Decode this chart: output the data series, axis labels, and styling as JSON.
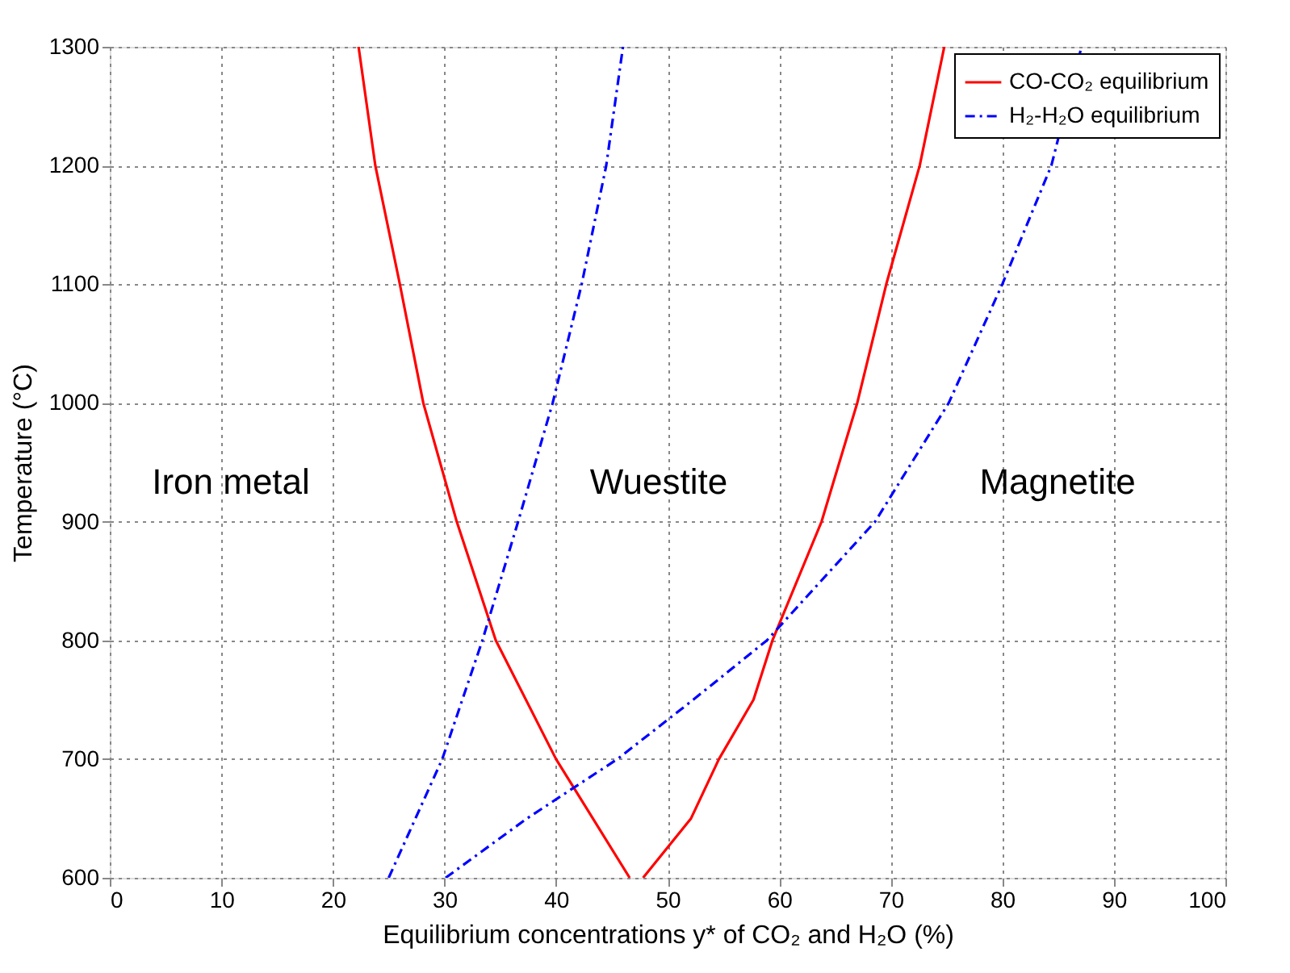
{
  "chart_data": {
    "type": "line",
    "xlabel": "Equilibrium concentrations y* of CO₂ and H₂O (%)",
    "ylabel": "Temperature (°C)",
    "xlim": [
      0,
      100
    ],
    "xticks": [
      0,
      10,
      20,
      30,
      40,
      50,
      60,
      70,
      80,
      90,
      100
    ],
    "ylim": [
      600,
      1300
    ],
    "yticks": [
      600,
      700,
      800,
      900,
      1000,
      1100,
      1200,
      1300
    ],
    "grid": true,
    "legend": "top right",
    "marker": "none",
    "series": [
      {
        "name": "CO-CO₂ equilibrium",
        "color": "#ff0000",
        "line_style": "solid",
        "x": [
          46.6,
          40,
          34.6,
          31.1,
          28.1,
          26.0,
          23.8,
          22.3
        ],
        "values": [
          600,
          700,
          800,
          900,
          1000,
          1100,
          1200,
          1300
        ]
      },
      {
        "color": "#ff0000",
        "line_style": "solid",
        "x": [
          47.8,
          52.1,
          54.6,
          57.7,
          59.4,
          63.8,
          67.0,
          69.6,
          72.6,
          74.8
        ],
        "values": [
          600,
          650,
          700,
          750,
          800,
          900,
          1000,
          1100,
          1200,
          1300
        ]
      },
      {
        "name": "H₂-H₂O equilibrium",
        "color": "#0000ff",
        "line_style": "dashdot",
        "x": [
          25.0,
          29.8,
          33.4,
          36.6,
          39.7,
          42.3,
          44.5,
          46.0
        ],
        "values": [
          600,
          700,
          800,
          900,
          1000,
          1100,
          1200,
          1300
        ]
      },
      {
        "color": "#0000ff",
        "line_style": "dashdot",
        "x": [
          30.1,
          37.4,
          45.5,
          52.3,
          58.9,
          68.6,
          75.2,
          80.0,
          84.4,
          87.1
        ],
        "values": [
          600,
          650,
          700,
          750,
          800,
          900,
          1000,
          1100,
          1200,
          1300
        ]
      }
    ],
    "annotations": [
      "Iron metal",
      "Wuestite",
      "Magnetite"
    ]
  }
}
